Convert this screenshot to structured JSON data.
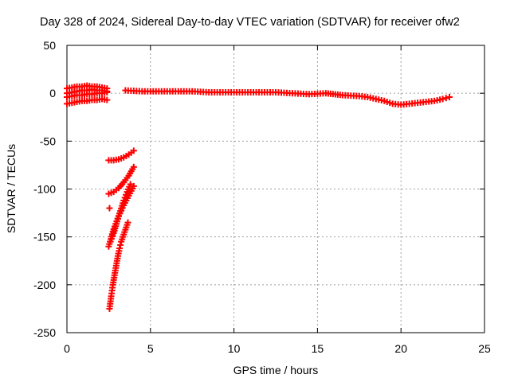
{
  "chart_data": {
    "type": "scatter",
    "title": "Day 328 of 2024, Sidereal Day-to-day VTEC variation (SDTVAR) for receiver ofw2",
    "xlabel": "GPS time / hours",
    "ylabel": "SDTVAR / TECUs",
    "xlim": [
      0,
      25
    ],
    "ylim": [
      -250,
      50
    ],
    "xticks": [
      0,
      5,
      10,
      15,
      20,
      25
    ],
    "yticks": [
      50,
      0,
      -50,
      -100,
      -150,
      -200,
      -250
    ],
    "xtick_labels": [
      "0",
      "5",
      "10",
      "15",
      "20",
      "25"
    ],
    "ytick_labels": [
      "50",
      "0",
      "-50",
      "-100",
      "-150",
      "-200",
      "-250"
    ],
    "grid": true,
    "marker": "plus",
    "color": "#ff0000",
    "series": [
      {
        "name": "arc-upper-early",
        "x": [
          0.0,
          0.3,
          0.6,
          0.9,
          1.2,
          1.5,
          1.8,
          2.1,
          2.4
        ],
        "y": [
          5,
          6,
          7,
          7,
          8,
          7,
          7,
          6,
          5
        ]
      },
      {
        "name": "arc-mid-early",
        "x": [
          0.0,
          0.3,
          0.6,
          0.9,
          1.2,
          1.5,
          1.8,
          2.1,
          2.4
        ],
        "y": [
          0,
          1,
          2,
          3,
          3,
          4,
          3,
          3,
          2
        ]
      },
      {
        "name": "arc-low-early",
        "x": [
          0.0,
          0.3,
          0.6,
          0.9,
          1.2,
          1.5,
          1.8,
          2.1,
          2.4
        ],
        "y": [
          -4,
          -3,
          -2,
          -2,
          -1,
          -1,
          0,
          0,
          1
        ]
      },
      {
        "name": "arc-lower-early",
        "x": [
          0.0,
          0.3,
          0.6,
          0.9,
          1.2,
          1.5,
          1.8,
          2.1,
          2.4
        ],
        "y": [
          -11,
          -10,
          -9,
          -8,
          -8,
          -7,
          -7,
          -6,
          -7
        ]
      },
      {
        "name": "arc-main",
        "x": [
          3.5,
          4.5,
          5.5,
          6.5,
          7.5,
          8.5,
          9.5,
          10.5,
          11.5,
          12.5,
          13.5,
          14.5,
          15.5,
          16.5,
          17.5,
          18.0,
          18.5,
          19.0,
          19.5,
          20.0,
          20.5,
          21.0,
          21.5,
          22.0,
          22.5,
          22.9
        ],
        "y": [
          3,
          2,
          2,
          2,
          2,
          1,
          1,
          1,
          1,
          1,
          0,
          -1,
          0,
          -2,
          -3,
          -4,
          -6,
          -8,
          -11,
          -12,
          -11,
          -10,
          -9,
          -8,
          -6,
          -4
        ]
      },
      {
        "name": "arc-fall-a",
        "x": [
          2.5,
          2.8,
          3.1,
          3.4,
          3.7,
          4.0
        ],
        "y": [
          -70,
          -70,
          -69,
          -67,
          -64,
          -60
        ]
      },
      {
        "name": "arc-fall-b",
        "x": [
          2.5,
          2.8,
          3.1,
          3.4,
          3.7,
          4.0
        ],
        "y": [
          -105,
          -103,
          -99,
          -93,
          -86,
          -77
        ]
      },
      {
        "name": "arc-fall-c",
        "x": [
          2.5,
          2.8,
          3.1,
          3.4,
          3.7,
          4.0
        ],
        "y": [
          -160,
          -142,
          -128,
          -117,
          -107,
          -97
        ]
      },
      {
        "name": "arc-fall-d",
        "x": [
          2.6,
          2.8,
          3.0,
          3.2,
          3.4,
          3.6,
          3.8
        ],
        "y": [
          -155,
          -146,
          -134,
          -123,
          -112,
          -103,
          -95
        ]
      },
      {
        "name": "arc-fall-e",
        "x": [
          2.55,
          2.65,
          2.75,
          2.85,
          2.95,
          3.05,
          3.15,
          3.25,
          3.35,
          3.45,
          3.55,
          3.65
        ],
        "y": [
          -225,
          -212,
          -200,
          -190,
          -180,
          -170,
          -162,
          -155,
          -150,
          -145,
          -140,
          -135
        ]
      },
      {
        "name": "isolated",
        "x": [
          2.55
        ],
        "y": [
          -120
        ]
      }
    ]
  }
}
